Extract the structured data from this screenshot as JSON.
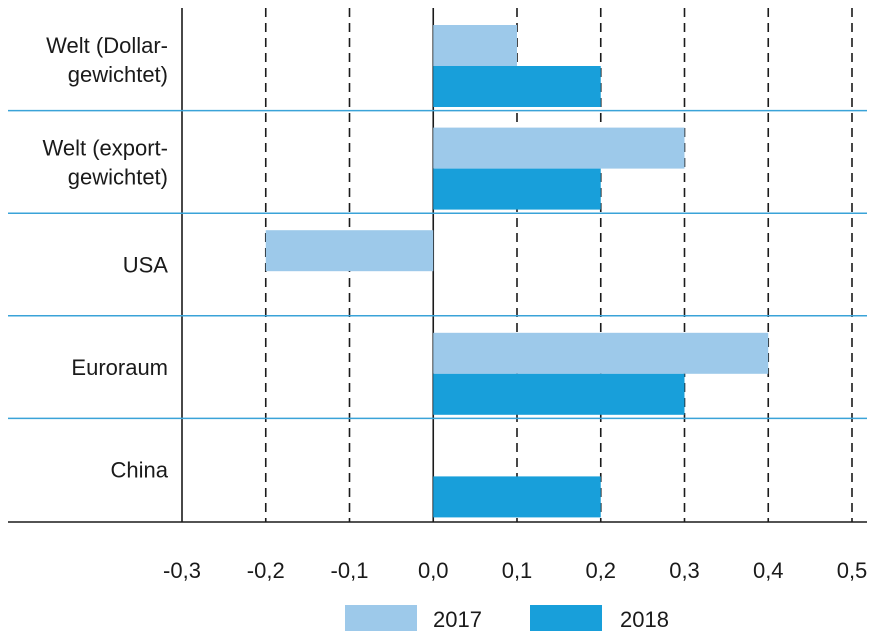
{
  "chart_data": {
    "type": "bar",
    "orientation": "horizontal",
    "categories": [
      [
        "Welt (Dollar-",
        "gewichtet)"
      ],
      [
        "Welt (export-",
        "gewichtet)"
      ],
      [
        "USA"
      ],
      [
        "Euroraum"
      ],
      [
        "China"
      ]
    ],
    "series": [
      {
        "name": "2017",
        "color": "#9dc9ea",
        "values": [
          0.1,
          0.3,
          -0.2,
          0.4,
          0.0
        ]
      },
      {
        "name": "2018",
        "color": "#189fda",
        "values": [
          0.2,
          0.2,
          0.0,
          0.3,
          0.2
        ]
      }
    ],
    "xlim": [
      -0.3,
      0.5
    ],
    "xticks": [
      -0.3,
      -0.2,
      -0.1,
      0.0,
      0.1,
      0.2,
      0.3,
      0.4,
      0.5
    ],
    "xtick_labels": [
      "-0,3",
      "-0,2",
      "-0,1",
      "0,0",
      "0,1",
      "0,2",
      "0,3",
      "0,4",
      "0,5"
    ],
    "grid": "vertical dashed",
    "legend": "bottom-center",
    "separator_color": "#3aa3d8"
  }
}
